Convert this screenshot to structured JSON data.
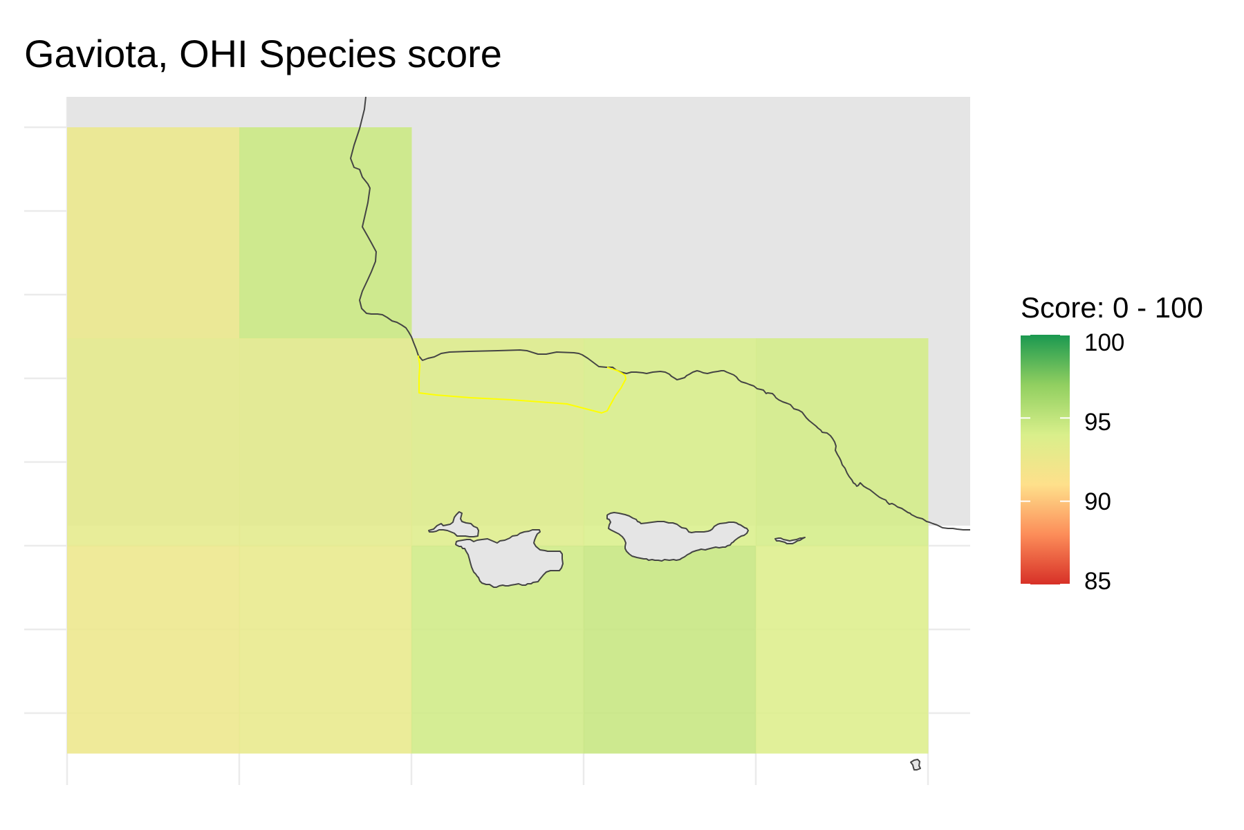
{
  "title": "Gaviota, OHI Species score",
  "legend": {
    "title": "Score: 0 - 100",
    "range": [
      85,
      100
    ],
    "tick_labels": [
      "100",
      "95",
      "90",
      "85"
    ],
    "colors": [
      "#d73027",
      "#fc8d59",
      "#fee08b",
      "#d9ef8b",
      "#91cf60",
      "#1a9850"
    ]
  },
  "map": {
    "land_color": "#e5e5e5",
    "coastline_color": "#444444",
    "study_area_outline_color": "#ffff00",
    "grid_on": true,
    "axis_tick_labels_shown": false
  },
  "chart_data": {
    "type": "heatmap",
    "title": "Gaviota, OHI Species score",
    "legend_title": "Score: 0 - 100",
    "value_range": [
      85,
      100
    ],
    "grid_rows": 3,
    "grid_cols": 5,
    "cells": [
      {
        "row": 0,
        "col": 0,
        "value": 92.5
      },
      {
        "row": 0,
        "col": 1,
        "value": 94.6
      },
      {
        "row": 1,
        "col": 0,
        "value": 93.0
      },
      {
        "row": 1,
        "col": 1,
        "value": 93.2
      },
      {
        "row": 1,
        "col": 2,
        "value": 93.6
      },
      {
        "row": 1,
        "col": 3,
        "value": 93.9
      },
      {
        "row": 1,
        "col": 4,
        "value": 94.2
      },
      {
        "row": 2,
        "col": 0,
        "value": 92.4
      },
      {
        "row": 2,
        "col": 1,
        "value": 92.8
      },
      {
        "row": 2,
        "col": 2,
        "value": 94.4
      },
      {
        "row": 2,
        "col": 3,
        "value": 94.8
      },
      {
        "row": 2,
        "col": 4,
        "value": 93.7
      }
    ]
  }
}
